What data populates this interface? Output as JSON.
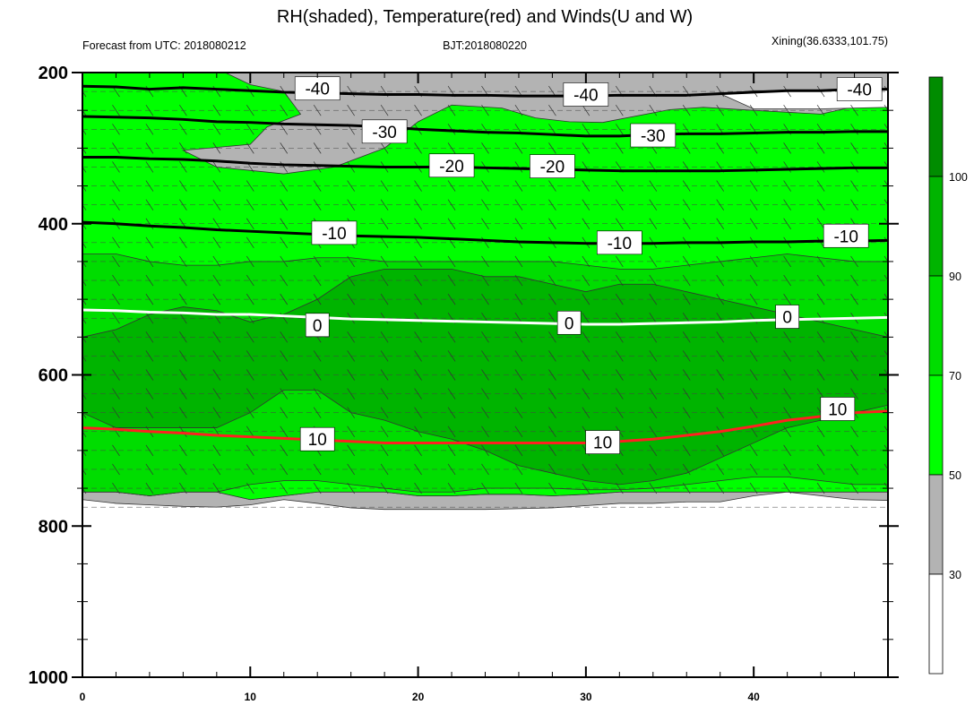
{
  "chart_data": {
    "type": "heatmap",
    "title": "RH(shaded), Temperature(red) and Winds(U and W)",
    "subtitles": {
      "left": "Forecast from UTC: 2018080212",
      "center": "BJT:2018080220",
      "right": "Xining(36.6333,101.75)"
    },
    "x_axis": {
      "range": [
        0,
        48
      ],
      "ticks": [
        "0",
        "10",
        "20",
        "30",
        "40"
      ],
      "tick_values": [
        0,
        10,
        20,
        30,
        40
      ]
    },
    "y_axis": {
      "range": [
        200,
        1000
      ],
      "ticks": [
        "200",
        "400",
        "600",
        "800",
        "1000"
      ],
      "tick_values": [
        200,
        400,
        600,
        800,
        1000
      ]
    },
    "colorbar": {
      "levels": [
        "30",
        "50",
        "70",
        "90",
        "100"
      ],
      "colors": [
        "#ffffff",
        "#b3b3b3",
        "#00ff00",
        "#00dd00",
        "#00b400",
        "#008c00"
      ]
    },
    "rh_bands": [
      {
        "color": "#b3b3b3",
        "top": [
          755,
          755,
          760,
          755,
          755,
          765,
          760,
          755,
          755,
          755,
          760,
          760,
          758,
          758,
          760,
          758,
          755,
          755,
          755,
          755,
          755,
          755,
          755,
          755,
          755
        ],
        "bottom": [
          765,
          770,
          772,
          774,
          775,
          772,
          765,
          770,
          776,
          778,
          778,
          778,
          778,
          777,
          776,
          773,
          770,
          770,
          768,
          768,
          760,
          755,
          760,
          765,
          766
        ]
      },
      {
        "color": "#00ff00",
        "top": [
          200,
          200,
          200,
          200,
          200,
          200,
          200,
          200,
          200,
          200,
          200,
          200,
          200,
          200,
          200,
          200,
          200,
          200,
          200,
          200,
          200,
          200,
          200,
          200,
          200
        ],
        "bottom": [
          755,
          755,
          760,
          755,
          755,
          765,
          760,
          755,
          755,
          755,
          760,
          760,
          758,
          758,
          760,
          758,
          755,
          755,
          755,
          755,
          755,
          755,
          755,
          755,
          755
        ]
      },
      {
        "color": "#00dd00",
        "top": [
          440,
          440,
          450,
          455,
          455,
          450,
          450,
          445,
          445,
          450,
          450,
          450,
          450,
          450,
          450,
          455,
          460,
          460,
          455,
          450,
          445,
          440,
          445,
          450,
          450
        ],
        "bottom": [
          755,
          755,
          760,
          755,
          755,
          745,
          740,
          740,
          745,
          750,
          755,
          755,
          750,
          750,
          750,
          752,
          752,
          750,
          745,
          740,
          735,
          735,
          740,
          745,
          745
        ]
      },
      {
        "color": "#00b400",
        "top": [
          550,
          540,
          520,
          510,
          515,
          530,
          520,
          500,
          470,
          460,
          460,
          460,
          470,
          470,
          480,
          490,
          480,
          480,
          490,
          500,
          510,
          520,
          530,
          540,
          550
        ],
        "bottom": [
          650,
          670,
          670,
          670,
          670,
          650,
          620,
          620,
          650,
          660,
          675,
          685,
          700,
          720,
          730,
          740,
          745,
          740,
          730,
          710,
          690,
          670,
          660,
          650,
          640
        ]
      }
    ],
    "gray_upper": {
      "color": "#b3b3b3",
      "polygon": [
        [
          8.5,
          200
        ],
        [
          10,
          216
        ],
        [
          12,
          225
        ],
        [
          13,
          255
        ],
        [
          11,
          272
        ],
        [
          10,
          295
        ],
        [
          6,
          303
        ],
        [
          8,
          325
        ],
        [
          12,
          334
        ],
        [
          15,
          325
        ],
        [
          18,
          300
        ],
        [
          20,
          265
        ],
        [
          22,
          243
        ],
        [
          25,
          247
        ],
        [
          27,
          260
        ],
        [
          29,
          265
        ],
        [
          31,
          266
        ],
        [
          35,
          249
        ],
        [
          37,
          246
        ],
        [
          40,
          250
        ],
        [
          44,
          255
        ],
        [
          46,
          245
        ],
        [
          48,
          240
        ],
        [
          48,
          200
        ]
      ]
    },
    "white_upper": {
      "color": "#ffffff",
      "polygon": [
        [
          38,
          228
        ],
        [
          40,
          224
        ],
        [
          44,
          224
        ],
        [
          48,
          221
        ],
        [
          48,
          246
        ],
        [
          44,
          248
        ],
        [
          40,
          248
        ]
      ]
    },
    "temperature_isotherms": [
      {
        "level": -40,
        "color": "#000000",
        "y": [
          218,
          219,
          222,
          220,
          222,
          224,
          226,
          227,
          228,
          229,
          229,
          230,
          230,
          231,
          231,
          231,
          230,
          230,
          230,
          228,
          226,
          224,
          224,
          222,
          222
        ]
      },
      {
        "level": -30,
        "color": "#000000",
        "y": [
          258,
          259,
          260,
          262,
          265,
          266,
          268,
          269,
          270,
          272,
          275,
          277,
          279,
          280,
          282,
          284,
          284,
          282,
          281,
          281,
          280,
          279,
          279,
          278,
          278
        ]
      },
      {
        "level": -20,
        "color": "#000000",
        "y": [
          312,
          312,
          314,
          315,
          317,
          320,
          322,
          323,
          324,
          325,
          325,
          325,
          326,
          327,
          328,
          329,
          330,
          330,
          330,
          330,
          329,
          328,
          327,
          326,
          326
        ]
      },
      {
        "level": -10,
        "color": "#000000",
        "y": [
          398,
          400,
          403,
          405,
          408,
          410,
          412,
          414,
          416,
          417,
          418,
          420,
          422,
          424,
          425,
          426,
          426,
          426,
          425,
          425,
          424,
          424,
          423,
          423,
          422
        ]
      },
      {
        "level": 0,
        "color": "#ffffff",
        "y": [
          514,
          515,
          517,
          518,
          520,
          520,
          522,
          524,
          526,
          527,
          528,
          529,
          530,
          531,
          532,
          533,
          533,
          532,
          531,
          530,
          528,
          527,
          526,
          525,
          524
        ]
      },
      {
        "level": 10,
        "color": "#ff2020",
        "y": [
          670,
          672,
          675,
          677,
          680,
          682,
          684,
          686,
          688,
          690,
          690,
          690,
          690,
          690,
          690,
          690,
          688,
          685,
          680,
          675,
          668,
          660,
          655,
          650,
          648
        ]
      }
    ],
    "temperature_labels": [
      {
        "text": "-40",
        "x": 14,
        "y": 221
      },
      {
        "text": "-40",
        "x": 30,
        "y": 229
      },
      {
        "text": "-40",
        "x": 46.3,
        "y": 222
      },
      {
        "text": "-30",
        "x": 18,
        "y": 278
      },
      {
        "text": "-30",
        "x": 34,
        "y": 283
      },
      {
        "text": "-20",
        "x": 22,
        "y": 323
      },
      {
        "text": "-20",
        "x": 28,
        "y": 324
      },
      {
        "text": "-10",
        "x": 15,
        "y": 412
      },
      {
        "text": "-10",
        "x": 32,
        "y": 425
      },
      {
        "text": "-10",
        "x": 45.5,
        "y": 416
      },
      {
        "text": "0",
        "x": 14,
        "y": 534
      },
      {
        "text": "0",
        "x": 29,
        "y": 531
      },
      {
        "text": "0",
        "x": 42,
        "y": 523
      },
      {
        "text": "10",
        "x": 14,
        "y": 685
      },
      {
        "text": "10",
        "x": 31,
        "y": 689
      },
      {
        "text": "10",
        "x": 45,
        "y": 645
      }
    ]
  }
}
